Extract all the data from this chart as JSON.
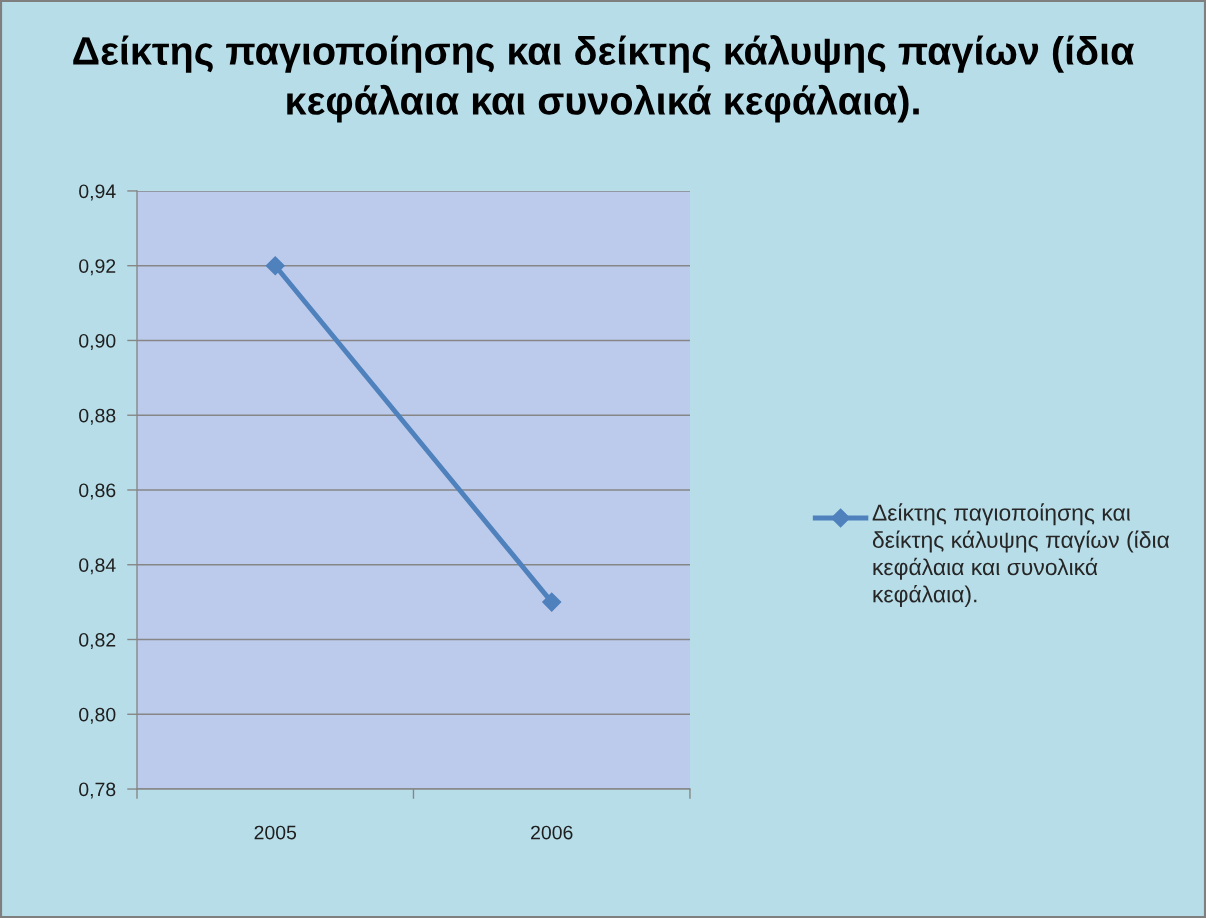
{
  "chart_data": {
    "type": "line",
    "title": "Δείκτης παγιοποίησης και δείκτης κάλυψης παγίων (ίδια κεφάλαια και συνολικά κεφάλαια).",
    "categories": [
      "2005",
      "2006"
    ],
    "series": [
      {
        "name": "Δείκτης παγιοποίησης και δείκτης κάλυψης παγίων (ίδια κεφάλαια και συνολικά κεφάλαια).",
        "color": "#4f81bd",
        "values": [
          0.92,
          0.83
        ]
      }
    ],
    "ylim": [
      0.78,
      0.94
    ],
    "yticks": [
      {
        "value": 0.78,
        "label": "0,78"
      },
      {
        "value": 0.8,
        "label": "0,80"
      },
      {
        "value": 0.82,
        "label": "0,82"
      },
      {
        "value": 0.84,
        "label": "0,84"
      },
      {
        "value": 0.86,
        "label": "0,86"
      },
      {
        "value": 0.88,
        "label": "0,88"
      },
      {
        "value": 0.9,
        "label": "0,90"
      },
      {
        "value": 0.92,
        "label": "0,92"
      },
      {
        "value": 0.94,
        "label": "0,94"
      }
    ],
    "grid": "y",
    "legend": "right",
    "marker": "diamond",
    "line_style": "solid"
  }
}
